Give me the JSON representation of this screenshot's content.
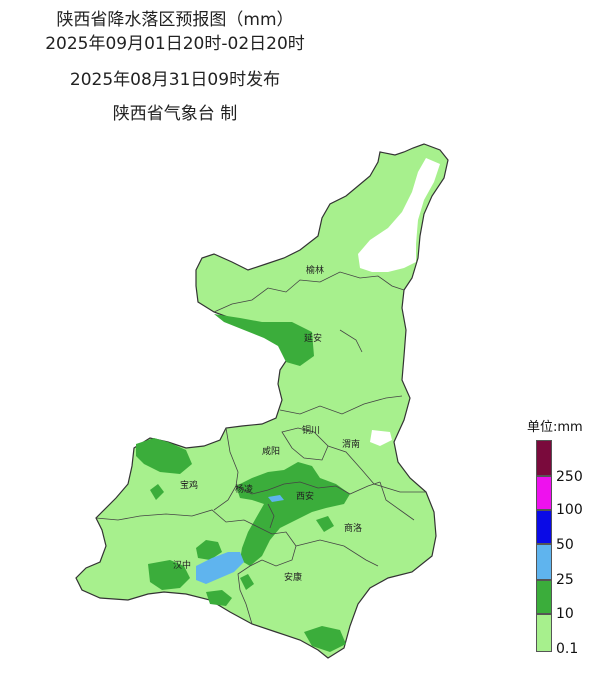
{
  "title": {
    "line1": "陕西省降水落区预报图（mm）",
    "line2": "2025年09月01日20时-02日20时",
    "line3": "2025年08月31日09时发布",
    "line4": "陕西省气象台 制"
  },
  "cities": [
    "榆林",
    "延安",
    "铜川",
    "渭南",
    "咸阳",
    "宝鸡",
    "杨凌",
    "西安",
    "商洛",
    "汉中",
    "安康"
  ],
  "legend": {
    "unit": "单位:mm",
    "levels": [
      {
        "label": "250",
        "color": "#7a0a3c"
      },
      {
        "label": "100",
        "color": "#ee11ee"
      },
      {
        "label": "50",
        "color": "#0a0ae6"
      },
      {
        "label": "25",
        "color": "#5fb4ee"
      },
      {
        "label": "10",
        "color": "#3bad3b"
      },
      {
        "label": "0.1",
        "color": "#a7f08d"
      }
    ]
  },
  "colors": {
    "light_rain": "#a7f08d",
    "moderate_rain": "#3bad3b",
    "heavy_rain": "#5fb4ee",
    "boundary": "#333333",
    "no_rain": "#ffffff"
  }
}
